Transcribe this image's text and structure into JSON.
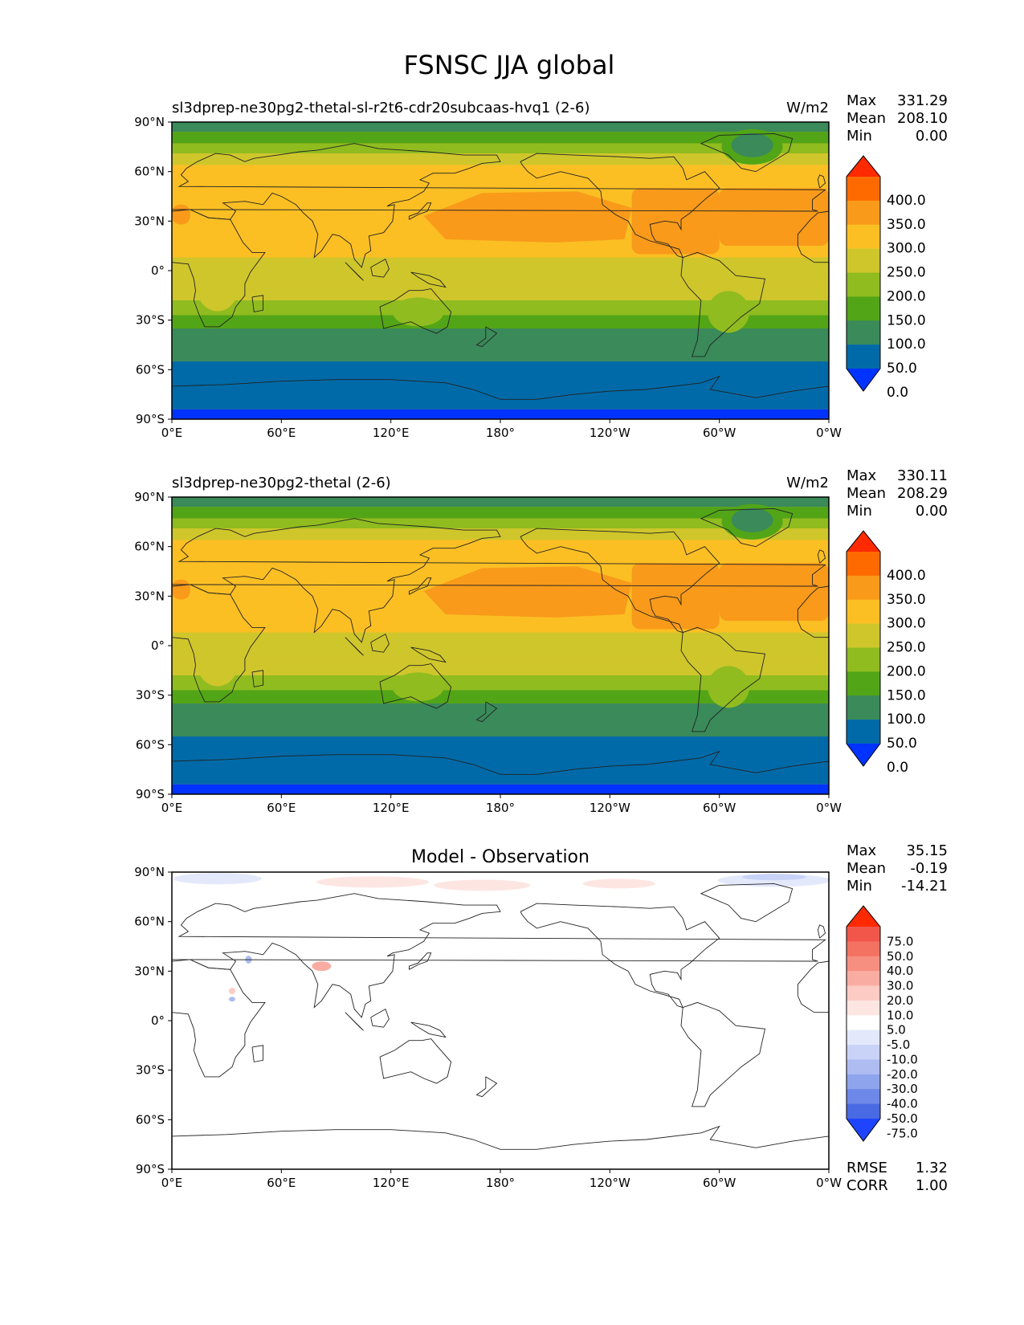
{
  "title": "FSNSC JJA global",
  "x_ticks": [
    "0°E",
    "60°E",
    "120°E",
    "180°",
    "120°W",
    "60°W",
    "0°W"
  ],
  "y_ticks": [
    "90°N",
    "60°N",
    "30°N",
    "0°",
    "30°S",
    "60°S",
    "90°S"
  ],
  "units": "W/m2",
  "stat_labels": {
    "max": "Max",
    "mean": "Mean",
    "min": "Min",
    "rmse": "RMSE",
    "corr": "CORR"
  },
  "panels": [
    {
      "title": "sl3dprep-ne30pg2-thetal-sl-r2t6-cdr20subcaas-hvq1 (2-6)",
      "units": "W/m2",
      "stats": {
        "max": "331.29",
        "mean": "208.10",
        "min": "0.00"
      }
    },
    {
      "title": "sl3dprep-ne30pg2-thetal (2-6)",
      "units": "W/m2",
      "stats": {
        "max": "330.11",
        "mean": "208.29",
        "min": "0.00"
      }
    },
    {
      "title": "Model - Observation",
      "units": "",
      "stats": {
        "max": "35.15",
        "mean": "-0.19",
        "min": "-14.21"
      },
      "rmse": "1.32",
      "corr": "1.00"
    }
  ],
  "colorbar_main": {
    "labels": [
      "400.0",
      "350.0",
      "300.0",
      "250.0",
      "200.0",
      "150.0",
      "100.0",
      "50.0",
      "0.0"
    ],
    "colors": [
      "#ff2a00",
      "#ff6a00",
      "#f99a1a",
      "#fbbf24",
      "#cfc62c",
      "#90bc20",
      "#52a516",
      "#3a8a5a",
      "#006aa8",
      "#0033ff"
    ]
  },
  "colorbar_diff": {
    "labels": [
      "75.0",
      "50.0",
      "40.0",
      "30.0",
      "20.0",
      "10.0",
      "5.0",
      "-5.0",
      "-10.0",
      "-20.0",
      "-30.0",
      "-40.0",
      "-50.0",
      "-75.0"
    ],
    "colors": [
      "#ff2a00",
      "#f2564a",
      "#f47262",
      "#f78f80",
      "#f9ada2",
      "#fbcbc4",
      "#fde6e2",
      "#ffffff",
      "#e3e9fb",
      "#c8d3f7",
      "#aebcf2",
      "#8ea4ed",
      "#6d88e8",
      "#4a6ae3",
      "#1f44ff"
    ]
  }
}
